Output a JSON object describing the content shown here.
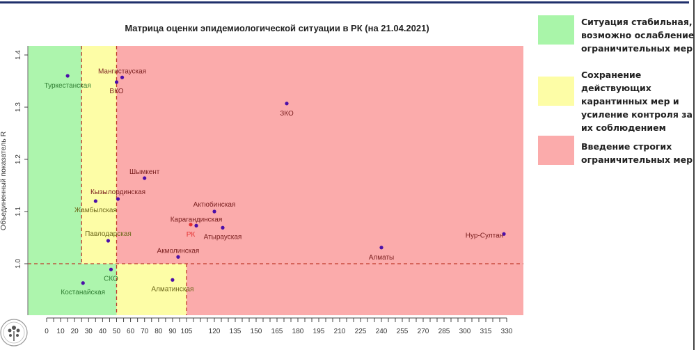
{
  "chart_data": {
    "type": "scatter",
    "title": "Матрица оценки эпидемиологической ситуации в РК (на 21.04.2021)",
    "xlabel": "",
    "ylabel": "Объединенный показатель R",
    "xlim": [
      -13,
      342
    ],
    "ylim": [
      0.9,
      1.417
    ],
    "x_ticks": [
      0,
      10,
      20,
      30,
      40,
      50,
      60,
      70,
      80,
      90,
      105,
      120,
      135,
      150,
      165,
      180,
      195,
      210,
      225,
      240,
      255,
      270,
      285,
      300,
      315,
      330
    ],
    "y_ticks": [
      1.0,
      1.1,
      1.2,
      1.3,
      1.4
    ],
    "y_tick_labels": [
      "1.0",
      "1.1",
      "1.2",
      "1.3",
      "1.4"
    ],
    "thresholds": {
      "x_green": 25,
      "x_yellow": 50,
      "x_yellow_below_1": 100,
      "y": 1.0
    },
    "points": [
      {
        "label": "Туркестанская",
        "x": 15,
        "y": 1.36
      },
      {
        "label": "ВКО",
        "x": 50,
        "y": 1.348
      },
      {
        "label": "Мангистауская",
        "x": 54,
        "y": 1.357
      },
      {
        "label": "ЗКО",
        "x": 172,
        "y": 1.307
      },
      {
        "label": "Шымкент",
        "x": 70,
        "y": 1.164
      },
      {
        "label": "Кызылординская",
        "x": 51,
        "y": 1.124
      },
      {
        "label": "Жамбылская",
        "x": 35,
        "y": 1.12
      },
      {
        "label": "Актюбинская",
        "x": 120,
        "y": 1.1
      },
      {
        "label": "Карагандинская",
        "x": 107,
        "y": 1.073
      },
      {
        "label": "РК",
        "x": 103,
        "y": 1.075
      },
      {
        "label": "Атырауская",
        "x": 126,
        "y": 1.069
      },
      {
        "label": "Павлодарская",
        "x": 44,
        "y": 1.044
      },
      {
        "label": "Акмолинская",
        "x": 94,
        "y": 1.013
      },
      {
        "label": "СКО",
        "x": 46,
        "y": 0.989
      },
      {
        "label": "Костанайская",
        "x": 26,
        "y": 0.963
      },
      {
        "label": "Алматинская",
        "x": 90,
        "y": 0.969
      },
      {
        "label": "Алматы",
        "x": 240,
        "y": 1.031
      },
      {
        "label": "Нур-Султан",
        "x": 328,
        "y": 1.057
      }
    ],
    "colors": {
      "green": "#adf5ad",
      "yellow": "#fdfda6",
      "red": "#fbabab",
      "threshold": "#c0392b",
      "point": "#4b0fa8",
      "rk": "#e53030"
    }
  },
  "legend": [
    {
      "text": "Ситуация стабильная, возможно ослабление ограничительных мер",
      "color": "#a9f5a9"
    },
    {
      "text": "Сохранение действующих карантинных мер и усиление контроля за их соблюдением",
      "color": "#fdfda6"
    },
    {
      "text": "Введение строгих ограничительных мер",
      "color": "#fbabab"
    }
  ]
}
